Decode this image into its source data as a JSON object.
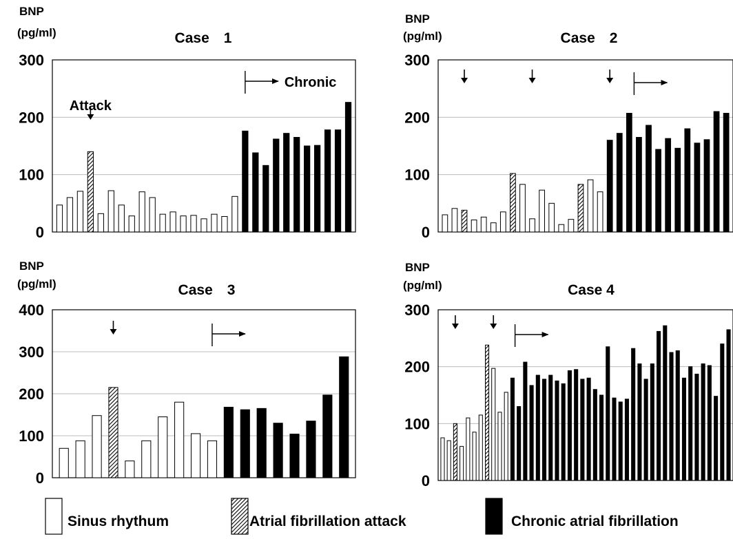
{
  "legend": {
    "sinus": "Sinus rhythum",
    "attack": "Atrial fibrillation attack",
    "chronic": "Chronic atrial fibrillation"
  },
  "colors": {
    "sinus": "#ffffff",
    "attack": "#000000",
    "chronic": "#000000",
    "gridline": "#bbbbbb"
  },
  "chart_data": [
    {
      "type": "bar",
      "title": "Case　1",
      "ylabel": "BNP",
      "yunit": "(pg/ml)",
      "ylim": [
        0,
        300
      ],
      "yticks": [
        0,
        100,
        200,
        300
      ],
      "annotations": {
        "attack_label": "Attack",
        "chronic_label": "Chronic"
      },
      "attack_markers": [
        4
      ],
      "chronic_start": 19,
      "values": [
        47,
        60,
        71,
        140,
        32,
        72,
        47,
        28,
        70,
        60,
        31,
        35,
        28,
        29,
        23,
        31,
        27,
        62,
        176,
        138,
        116,
        162,
        172,
        165,
        150,
        151,
        178,
        178,
        226
      ],
      "states": [
        "s",
        "s",
        "s",
        "a",
        "s",
        "s",
        "s",
        "s",
        "s",
        "s",
        "s",
        "s",
        "s",
        "s",
        "s",
        "s",
        "s",
        "s",
        "c",
        "c",
        "c",
        "c",
        "c",
        "c",
        "c",
        "c",
        "c",
        "c",
        "c"
      ]
    },
    {
      "type": "bar",
      "title": "Case　2",
      "ylabel": "BNP",
      "yunit": "(pg/ml)",
      "ylim": [
        0,
        300
      ],
      "yticks": [
        0,
        100,
        200,
        300
      ],
      "annotations": {},
      "attack_markers": [
        3,
        10,
        18
      ],
      "chronic_start": 20.5,
      "values": [
        30,
        41,
        38,
        21,
        26,
        16,
        35,
        102,
        83,
        23,
        73,
        50,
        13,
        22,
        83,
        91,
        70,
        160,
        172,
        207,
        165,
        186,
        144,
        163,
        146,
        180,
        155,
        161,
        210,
        207
      ],
      "states": [
        "s",
        "s",
        "a",
        "s",
        "s",
        "s",
        "s",
        "a",
        "s",
        "s",
        "s",
        "s",
        "s",
        "s",
        "a",
        "s",
        "s",
        "c",
        "c",
        "c",
        "c",
        "c",
        "c",
        "c",
        "c",
        "c",
        "c",
        "c",
        "c",
        "c"
      ]
    },
    {
      "type": "bar",
      "title": "Case　3",
      "ylabel": "BNP",
      "yunit": "(pg/ml)",
      "ylim": [
        0,
        400
      ],
      "yticks": [
        0,
        100,
        200,
        300,
        400
      ],
      "annotations": {},
      "attack_markers": [
        4
      ],
      "chronic_start": 10,
      "values": [
        70,
        88,
        148,
        215,
        40,
        88,
        145,
        180,
        105,
        88,
        168,
        162,
        165,
        130,
        104,
        135,
        197,
        288
      ],
      "states": [
        "s",
        "s",
        "s",
        "a",
        "s",
        "s",
        "s",
        "s",
        "s",
        "s",
        "c",
        "c",
        "c",
        "c",
        "c",
        "c",
        "c",
        "c"
      ]
    },
    {
      "type": "bar",
      "title": "Case 4",
      "ylabel": "BNP",
      "yunit": "(pg/ml)",
      "ylim": [
        0,
        300
      ],
      "yticks": [
        0,
        100,
        200,
        300
      ],
      "annotations": {},
      "attack_markers": [
        3,
        9
      ],
      "chronic_start": 12.4,
      "values": [
        75,
        70,
        100,
        60,
        110,
        85,
        115,
        238,
        197,
        120,
        155,
        180,
        130,
        208,
        167,
        185,
        178,
        185,
        175,
        170,
        193,
        195,
        178,
        180,
        160,
        150,
        235,
        145,
        138,
        143,
        232,
        205,
        178,
        205,
        262,
        272,
        225,
        228,
        180,
        200,
        187,
        205,
        202,
        148,
        240,
        265
      ],
      "states": [
        "s",
        "s",
        "a",
        "s",
        "s",
        "s",
        "s",
        "a",
        "s",
        "s",
        "s",
        "c",
        "c",
        "c",
        "c",
        "c",
        "c",
        "c",
        "c",
        "c",
        "c",
        "c",
        "c",
        "c",
        "c",
        "c",
        "c",
        "c",
        "c",
        "c",
        "c",
        "c",
        "c",
        "c",
        "c",
        "c",
        "c",
        "c",
        "c",
        "c",
        "c",
        "c",
        "c",
        "c",
        "c",
        "c"
      ]
    }
  ]
}
